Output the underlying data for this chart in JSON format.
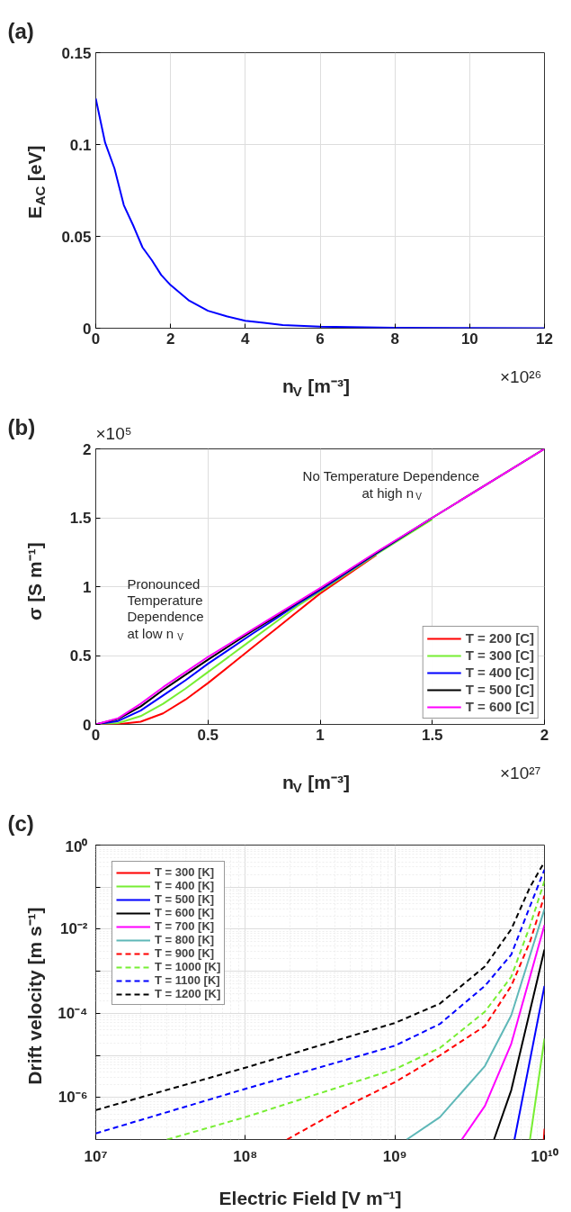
{
  "chart_data": [
    {
      "type": "line",
      "title": "(a)",
      "xlabel": "n$_{V}$ [m⁻³]",
      "ylabel": "E$_{AC}$ [eV]",
      "xlim": [
        0,
        12
      ],
      "ylim": [
        0,
        0.15
      ],
      "xticks": [
        0,
        2,
        4,
        6,
        8,
        10,
        12
      ],
      "yticks": [
        0,
        0.05,
        0.1,
        0.15
      ],
      "grid": true,
      "line_style": "solid",
      "series": [
        {
          "color": "#0000ff",
          "x": [
            0,
            0.25,
            0.5,
            0.75,
            1,
            1.25,
            1.5,
            1.75,
            2,
            2.5,
            3,
            3.5,
            4,
            4.5,
            5,
            6,
            8,
            10,
            12
          ],
          "values": [
            0.125,
            0.101,
            0.087,
            0.067,
            0.056,
            0.044,
            0.037,
            0.029,
            0.0235,
            0.015,
            0.0095,
            0.0065,
            0.004,
            0.0029,
            0.0017,
            0.0008,
            0.0002,
            0.0001,
            0
          ]
        }
      ],
      "annotations": [
        "×10²⁶"
      ]
    },
    {
      "type": "line",
      "title": "(b)",
      "xlabel": "n$_{V}$ [m⁻³]",
      "ylabel": "σ [S m⁻¹]",
      "xlim": [
        0,
        2
      ],
      "ylim": [
        0,
        2
      ],
      "xticks": [
        0,
        0.5,
        1,
        1.5,
        2
      ],
      "yticks": [
        0,
        0.5,
        1,
        1.5,
        2
      ],
      "grid": true,
      "legend": "bottom right",
      "line_style": "solid",
      "x": [
        0,
        0.1,
        0.2,
        0.3,
        0.4,
        0.5,
        0.6,
        0.7,
        0.8,
        0.9,
        1,
        1.25,
        1.5,
        2
      ],
      "series": [
        {
          "name": "T = 200 [C]",
          "color": "#ff0000",
          "values": [
            0,
            0.002,
            0.02,
            0.08,
            0.18,
            0.3,
            0.43,
            0.56,
            0.69,
            0.82,
            0.95,
            1.23,
            null,
            null
          ]
        },
        {
          "name": "T = 300 [C]",
          "color": "#77ee33",
          "values": [
            0,
            0.01,
            0.06,
            0.15,
            0.26,
            0.38,
            0.5,
            0.62,
            0.74,
            0.86,
            0.965,
            1.235,
            1.49,
            null
          ]
        },
        {
          "name": "T = 400 [C]",
          "color": "#0000ff",
          "values": [
            0,
            0.025,
            0.1,
            0.21,
            0.32,
            0.44,
            0.55,
            0.66,
            0.765,
            0.875,
            0.975,
            1.24,
            1.5,
            null
          ]
        },
        {
          "name": "T = 500 [C]",
          "color": "#000000",
          "values": [
            0,
            0.04,
            0.13,
            0.25,
            0.36,
            0.47,
            0.575,
            0.68,
            0.78,
            0.885,
            0.985,
            1.245,
            1.5,
            2
          ]
        },
        {
          "name": "T = 600 [C]",
          "color": "#ff00ff",
          "values": [
            0,
            0.045,
            0.15,
            0.27,
            0.38,
            0.49,
            0.59,
            0.69,
            0.79,
            0.89,
            0.99,
            1.25,
            1.5,
            2
          ]
        }
      ],
      "annotations": [
        "No Temperature Dependence\nat high n$_{V}$",
        "Pronounced\nTemperature\nDependence\nat low n$_{V}$",
        "×10²⁷",
        "×10⁵"
      ]
    },
    {
      "type": "line",
      "title": "(c)",
      "xlabel": "Electric Field [V m⁻¹]",
      "ylabel": "Drift velocity [m s⁻¹]",
      "log": "xy",
      "xlim": [
        10000000.0,
        10000000000.0
      ],
      "ylim": [
        1e-07,
        1
      ],
      "xticks": [
        {
          "value": 10000000.0,
          "label": "10⁷"
        },
        {
          "value": 100000000.0,
          "label": "10⁸"
        },
        {
          "value": 1000000000.0,
          "label": "10⁹"
        },
        {
          "value": 10000000000.0,
          "label": "10¹⁰"
        }
      ],
      "yticks": [
        {
          "value": 1e-06,
          "label": "10⁻⁶"
        },
        {
          "value": 1e-05,
          "label": null
        },
        {
          "value": 0.0001,
          "label": "10⁻⁴"
        },
        {
          "value": 0.001,
          "label": null
        },
        {
          "value": 0.01,
          "label": "10⁻²"
        },
        {
          "value": 0.1,
          "label": null
        },
        {
          "value": 1,
          "label": "10⁰"
        }
      ],
      "grid": true,
      "legend": "top left",
      "series": [
        {
          "name": "T = 300 [K]",
          "color": "#ff0000",
          "line_style": "solid",
          "x": [
            9900000000.0,
            10000000000.0
          ],
          "values": [
            1e-07,
            1.8e-07
          ]
        },
        {
          "name": "T = 400 [K]",
          "color": "#77ee33",
          "line_style": "solid",
          "x": [
            8000000000.0,
            10000000000.0
          ],
          "values": [
            1e-07,
            2.5e-05
          ]
        },
        {
          "name": "T = 500 [K]",
          "color": "#0000ff",
          "line_style": "solid",
          "x": [
            6300000000.0,
            10000000000.0
          ],
          "values": [
            1e-07,
            0.00045
          ]
        },
        {
          "name": "T = 600 [K]",
          "color": "#000000",
          "line_style": "solid",
          "x": [
            4600000000.0,
            6000000000.0,
            10000000000.0
          ],
          "values": [
            1e-07,
            1.5e-06,
            0.0033
          ]
        },
        {
          "name": "T = 700 [K]",
          "color": "#ff00ff",
          "line_style": "solid",
          "x": [
            2800000000.0,
            4000000000.0,
            6000000000.0,
            10000000000.0
          ],
          "values": [
            1e-07,
            6.3e-07,
            1.9e-05,
            0.0126
          ]
        },
        {
          "name": "T = 800 [K]",
          "color": "#5fb8b8",
          "line_style": "solid",
          "x": [
            1200000000.0,
            2000000000.0,
            4000000000.0,
            6000000000.0,
            10000000000.0
          ],
          "values": [
            1e-07,
            3.4e-07,
            5.6e-06,
            9e-05,
            0.03
          ]
        },
        {
          "name": "T = 900 [K]",
          "color": "#ff0000",
          "line_style": "dashed",
          "x": [
            190000000.0,
            500000000.0,
            1000000000.0,
            2000000000.0,
            4000000000.0,
            6000000000.0,
            8000000000.0,
            10000000000.0
          ],
          "values": [
            1e-07,
            6.8e-07,
            2.3e-06,
            1e-05,
            5e-05,
            0.00045,
            0.005,
            0.063
          ]
        },
        {
          "name": "T = 1000 [K]",
          "color": "#77ee33",
          "line_style": "dashed",
          "x": [
            30000000.0,
            100000000.0,
            1000000000.0,
            2000000000.0,
            4000000000.0,
            6000000000.0,
            8000000000.0,
            10000000000.0
          ],
          "values": [
            1e-07,
            3.4e-07,
            4.7e-06,
            1.5e-05,
            0.00011,
            0.00074,
            0.012,
            0.14
          ]
        },
        {
          "name": "T = 1100 [K]",
          "color": "#0000ff",
          "line_style": "dashed",
          "x": [
            10000000.0,
            100000000.0,
            1000000000.0,
            2000000000.0,
            4000000000.0,
            6000000000.0,
            8000000000.0,
            10000000000.0
          ],
          "values": [
            1.4e-07,
            1.6e-06,
            1.7e-05,
            5.6e-05,
            0.00045,
            0.0025,
            0.035,
            0.26
          ]
        },
        {
          "name": "T = 1200 [K]",
          "color": "#000000",
          "line_style": "dashed",
          "x": [
            10000000.0,
            100000000.0,
            1000000000.0,
            2000000000.0,
            4000000000.0,
            6000000000.0,
            8000000000.0,
            10000000000.0
          ],
          "values": [
            5e-07,
            5.1e-06,
            5.9e-05,
            0.00017,
            0.0013,
            0.01,
            0.1,
            0.4
          ]
        }
      ]
    }
  ]
}
